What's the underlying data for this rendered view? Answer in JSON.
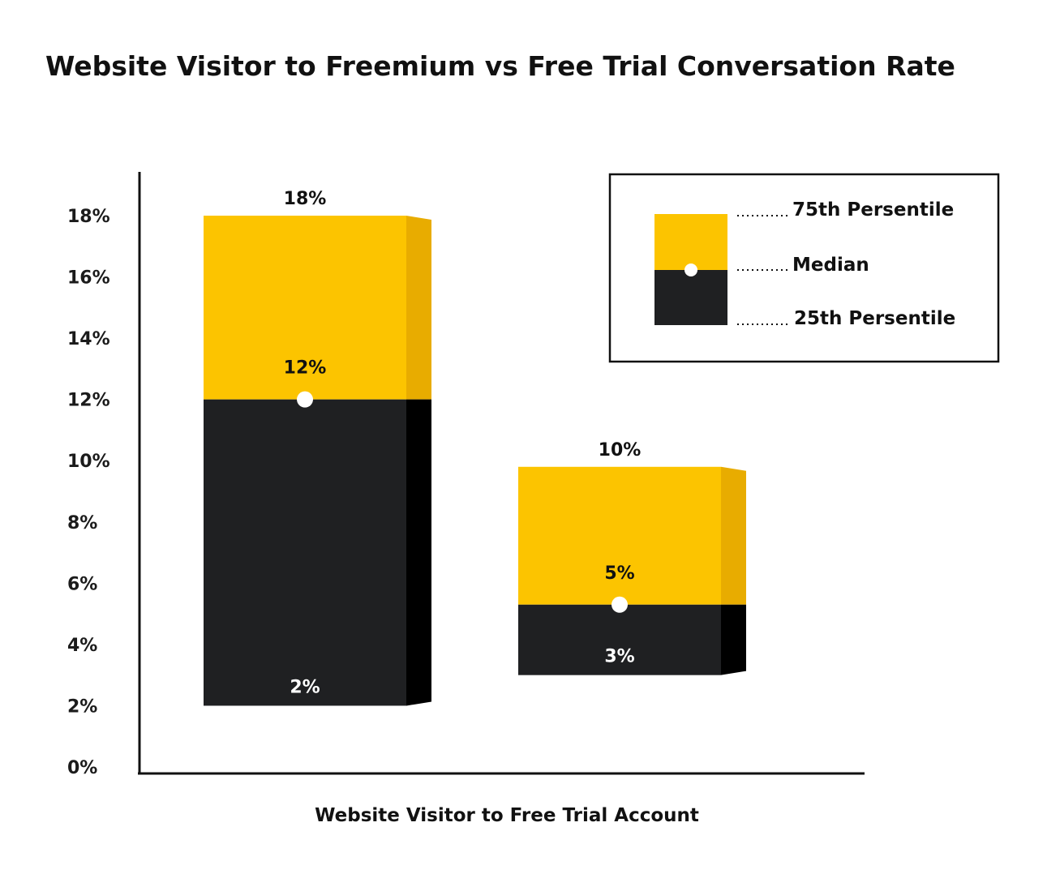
{
  "chart_data": {
    "type": "bar",
    "subtype": "floating-range-with-median",
    "title": "Website Visitor to Freemium vs Free Trial Conversation Rate",
    "xlabel": "Website Visitor to Free Trial Account",
    "ylabel": "",
    "ylim": [
      0,
      18
    ],
    "yticks": [
      "0%",
      "2%",
      "4%",
      "6%",
      "8%",
      "10%",
      "12%",
      "14%",
      "16%",
      "18%"
    ],
    "grid": false,
    "legend_position": "top-right",
    "series": [
      {
        "p25": 2,
        "median": 12,
        "p75": 18,
        "p25_label": "2%",
        "median_label": "12%",
        "p75_label": "18%"
      },
      {
        "p25": 3,
        "median": 5.3,
        "p75": 9.8,
        "p25_label": "3%",
        "median_label": "5%",
        "p75_label": "10%"
      }
    ],
    "legend": {
      "p75": "75th Persentile",
      "median": "Median",
      "p25": "25th Persentile"
    },
    "colors": {
      "upper": "#FCC400",
      "upper_side": "#E8AC00",
      "lower": "#1F2022",
      "lower_side": "#000000",
      "marker": "#FFFFFF"
    }
  }
}
